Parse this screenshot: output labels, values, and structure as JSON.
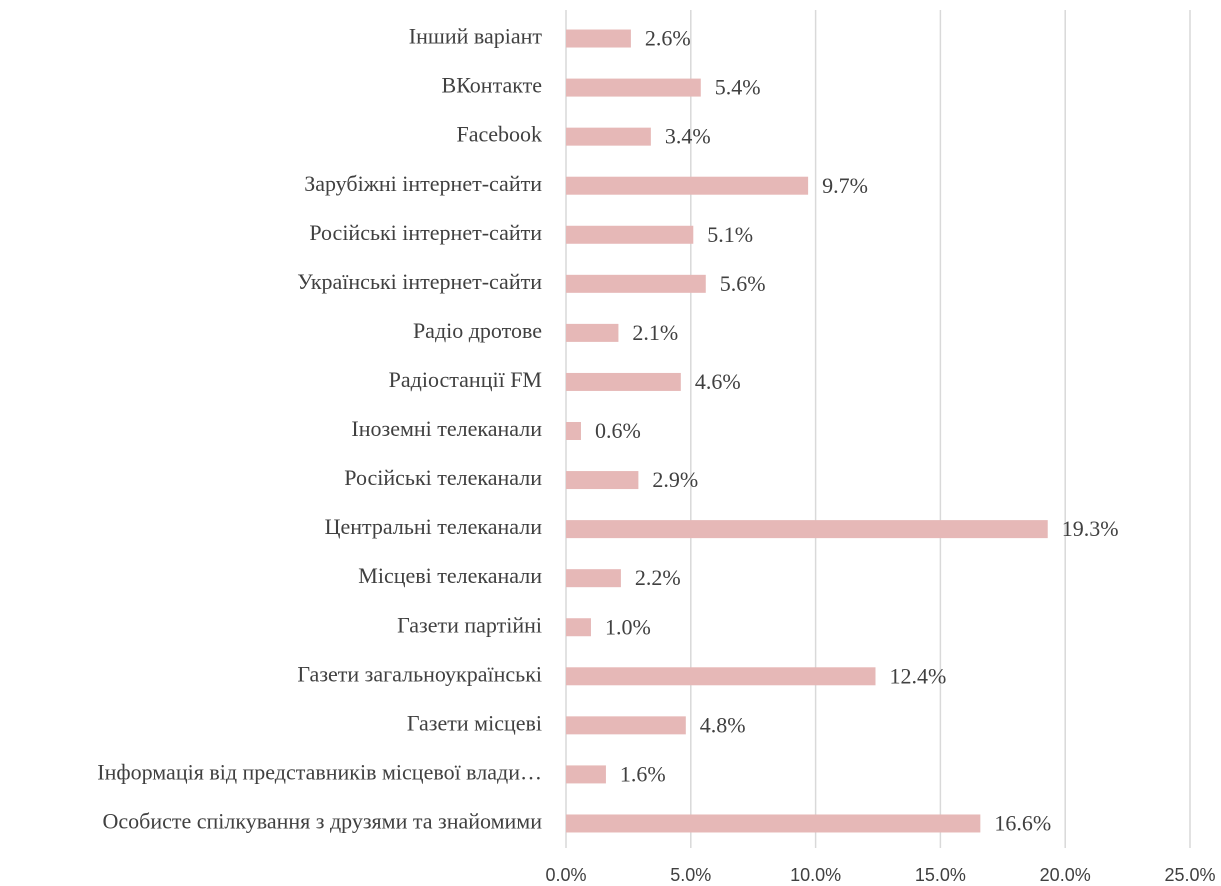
{
  "chart_data": {
    "type": "bar",
    "orientation": "horizontal",
    "categories": [
      "Інший варіант",
      "ВКонтакте",
      "Facebook",
      "Зарубіжні інтернет-сайти",
      "Російські інтернет-сайти",
      "Українські інтернет-сайти",
      "Радіо дротове",
      "Радіостанції FM",
      "Іноземні телеканали",
      "Російські телеканали",
      "Центральні телеканали",
      "Місцеві телеканали",
      "Газети партійні",
      "Газети загальноукраїнські",
      "Газети місцеві",
      "Інформація від представників місцевої влади…",
      "Особисте спілкування з друзями та знайомими"
    ],
    "values": [
      2.6,
      5.4,
      3.4,
      9.7,
      5.1,
      5.6,
      2.1,
      4.6,
      0.6,
      2.9,
      19.3,
      2.2,
      1.0,
      12.4,
      4.8,
      1.6,
      16.6
    ],
    "value_labels": [
      "2.6%",
      "5.4%",
      "3.4%",
      "9.7%",
      "5.1%",
      "5.6%",
      "2.1%",
      "4.6%",
      "0.6%",
      "2.9%",
      "19.3%",
      "2.2%",
      "1.0%",
      "12.4%",
      "4.8%",
      "1.6%",
      "16.6%"
    ],
    "color": "#e6b8b7",
    "xlim": [
      0,
      25
    ],
    "xticks": [
      {
        "value": 0,
        "label": "0.0%"
      },
      {
        "value": 5,
        "label": "5.0%"
      },
      {
        "value": 10,
        "label": "10.0%"
      },
      {
        "value": 15,
        "label": "15.0%"
      },
      {
        "value": 20,
        "label": "20.0%"
      },
      {
        "value": 25,
        "label": "25.0%"
      }
    ],
    "grid": true
  }
}
